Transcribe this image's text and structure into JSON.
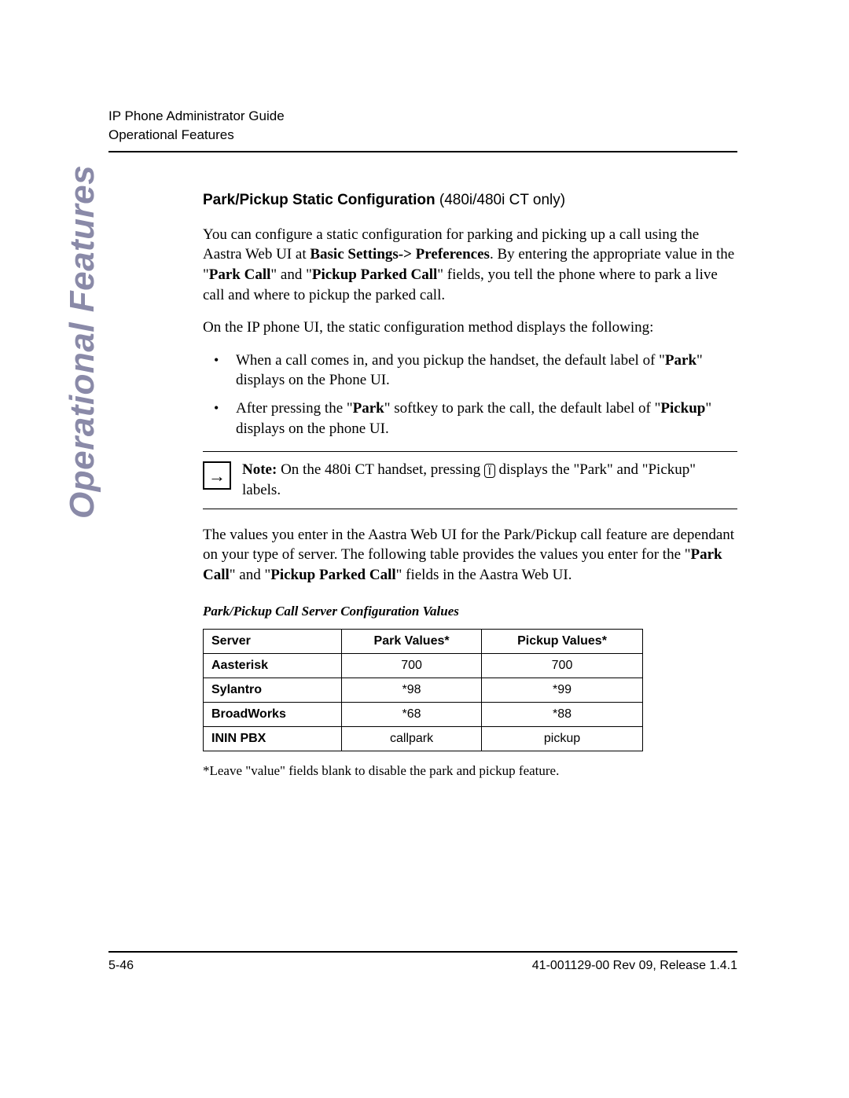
{
  "header": {
    "line1": "IP Phone Administrator Guide",
    "line2": "Operational Features"
  },
  "side_label": "Operational Features",
  "section": {
    "heading_bold": "Park/Pickup Static Configuration",
    "heading_rest": " (480i/480i CT only)",
    "para1_pre": "You can configure a static configuration for parking and picking up a call using the Aastra Web UI at ",
    "para1_bold1": "Basic Settings-> Preferences",
    "para1_mid1": ". By entering the appropriate value in the \"",
    "para1_bold2": "Park Call",
    "para1_mid2": "\" and \"",
    "para1_bold3": "Pickup Parked Call",
    "para1_post": "\" fields, you tell the phone where to park a live call and where to pickup the parked call.",
    "para2": "On the IP phone UI, the static configuration method displays the following:",
    "bullet1_pre": "When a call comes in, and you pickup the handset, the default label of \"",
    "bullet1_bold": "Park",
    "bullet1_post": "\" displays on the Phone UI.",
    "bullet2_pre": "After pressing the \"",
    "bullet2_bold1": "Park",
    "bullet2_mid": "\" softkey to park the call, the default label of \"",
    "bullet2_bold2": "Pickup",
    "bullet2_post": "\" displays on the phone UI.",
    "note_label": "Note:",
    "note_pre": " On the 480i CT handset, pressing ",
    "note_icon_glyph": "Ï",
    "note_post": " displays the \"Park\" and \"Pickup\" labels.",
    "para3_pre": "The values you enter in the Aastra Web UI for the Park/Pickup call feature are dependant on your type of server. The following table provides the values you enter for the \"",
    "para3_bold1": "Park Call",
    "para3_mid": "\" and \"",
    "para3_bold2": "Pickup Parked Call",
    "para3_post": "\" fields in the Aastra Web UI."
  },
  "table": {
    "caption": "Park/Pickup Call Server Configuration Values",
    "columns": [
      "Server",
      "Park Values*",
      "Pickup Values*"
    ],
    "rows": [
      [
        "Aasterisk",
        "700",
        "700"
      ],
      [
        "Sylantro",
        "*98",
        "*99"
      ],
      [
        "BroadWorks",
        "*68",
        "*88"
      ],
      [
        "ININ PBX",
        "callpark",
        "pickup"
      ]
    ],
    "footnote": "*Leave \"value\" fields blank to disable the park and pickup feature."
  },
  "footer": {
    "page": "5-46",
    "doc": "41-001129-00 Rev 09, Release 1.4.1"
  }
}
